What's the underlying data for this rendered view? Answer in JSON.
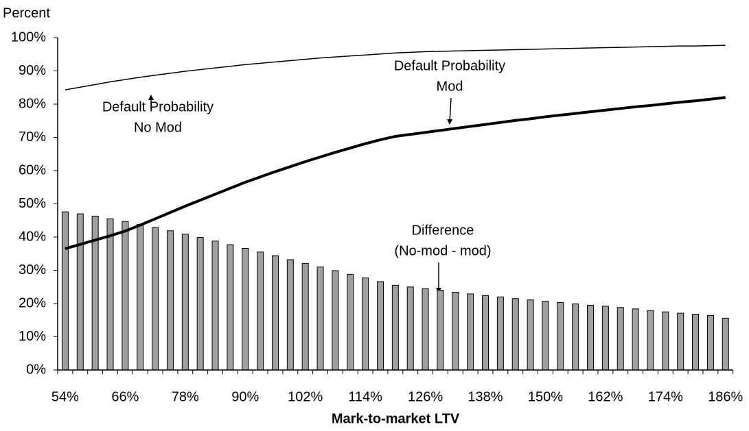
{
  "chart_data": {
    "type": "combo",
    "y_label": "Percent",
    "x_label": "Mark-to-market LTV",
    "categories": [
      "54%",
      null,
      null,
      null,
      "66%",
      null,
      null,
      null,
      "78%",
      null,
      null,
      null,
      "90%",
      null,
      null,
      null,
      "102%",
      null,
      null,
      null,
      "114%",
      null,
      null,
      null,
      "126%",
      null,
      null,
      null,
      "138%",
      null,
      null,
      null,
      "150%",
      null,
      null,
      null,
      "162%",
      null,
      null,
      null,
      "174%",
      null,
      null,
      null,
      "186%"
    ],
    "ylim": [
      0,
      100
    ],
    "yticks": [
      {
        "value": 0,
        "label": "0%"
      },
      {
        "value": 10,
        "label": "10%"
      },
      {
        "value": 20,
        "label": "20%"
      },
      {
        "value": 30,
        "label": "30%"
      },
      {
        "value": 40,
        "label": "40%"
      },
      {
        "value": 50,
        "label": "50%"
      },
      {
        "value": 60,
        "label": "60%"
      },
      {
        "value": 70,
        "label": "70%"
      },
      {
        "value": 80,
        "label": "80%"
      },
      {
        "value": 90,
        "label": "90%"
      },
      {
        "value": 100,
        "label": "100%"
      }
    ],
    "series": [
      {
        "type": "bar",
        "color": "#a0a0a0",
        "values": [
          47.6,
          47,
          46.3,
          45.5,
          44.7,
          43.8,
          42.9,
          41.9,
          40.9,
          39.9,
          38.8,
          37.7,
          36.6,
          35.5,
          34.4,
          33.2,
          32.1,
          31,
          29.9,
          28.8,
          27.7,
          26.6,
          25.5,
          25,
          24.5,
          24,
          23.4,
          22.9,
          22.4,
          22,
          21.5,
          21.1,
          20.7,
          20.3,
          19.9,
          19.5,
          19.2,
          18.8,
          18.4,
          17.9,
          17.5,
          17.1,
          16.8,
          16.4,
          15.6
        ]
      },
      {
        "type": "line",
        "color": "#000000",
        "width": 1.5,
        "values": [
          84.3,
          85.1,
          85.9,
          86.7,
          87.4,
          88.1,
          88.7,
          89.3,
          89.9,
          90.4,
          90.9,
          91.4,
          91.9,
          92.3,
          92.7,
          93.1,
          93.5,
          93.9,
          94.2,
          94.5,
          94.8,
          95.1,
          95.4,
          95.6,
          95.8,
          95.9,
          96.0,
          96.1,
          96.2,
          96.3,
          96.4,
          96.5,
          96.6,
          96.7,
          96.8,
          96.9,
          97.0,
          97.1,
          97.2,
          97.3,
          97.4,
          97.5,
          97.5,
          97.6,
          97.7
        ]
      },
      {
        "type": "line",
        "color": "#000000",
        "width": 4,
        "values": [
          36.5,
          37.8,
          39.1,
          40.4,
          41.8,
          43.6,
          45.5,
          47.4,
          49.3,
          51.1,
          52.9,
          54.7,
          56.5,
          58.1,
          59.7,
          61.2,
          62.7,
          64.1,
          65.5,
          66.8,
          68.1,
          69.3,
          70.3,
          70.9,
          71.5,
          72.1,
          72.7,
          73.3,
          73.9,
          74.5,
          75.1,
          75.6,
          76.2,
          76.7,
          77.2,
          77.7,
          78.2,
          78.7,
          79.2,
          79.6,
          80.1,
          80.6,
          81.0,
          81.5,
          82.0
        ]
      }
    ],
    "annotations": [
      {
        "lines": [
          "Default Probability",
          "No Mod"
        ]
      },
      {
        "lines": [
          "Default Probability",
          "Mod"
        ]
      },
      {
        "lines": [
          "Difference",
          "(No-mod - mod)"
        ]
      }
    ]
  }
}
